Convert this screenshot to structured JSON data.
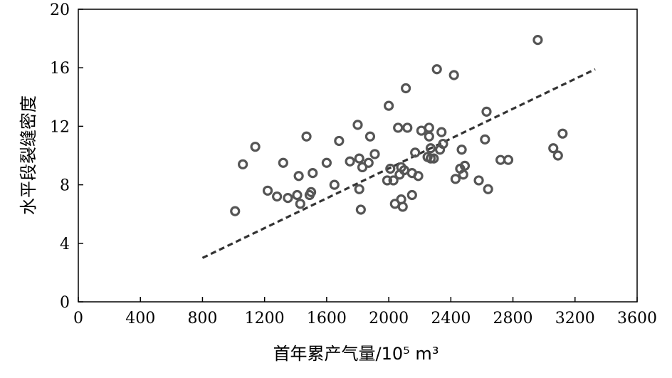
{
  "chart_data": {
    "type": "scatter",
    "xlabel": "首年累产气量/10⁵ m³",
    "ylabel": "水平段裂缝密度",
    "xlim": [
      0,
      3600
    ],
    "ylim": [
      0,
      20
    ],
    "xticks": [
      0,
      400,
      800,
      1200,
      1600,
      2000,
      2400,
      2800,
      3200,
      3600
    ],
    "yticks": [
      0,
      4,
      8,
      12,
      16,
      20
    ],
    "grid": false,
    "points": [
      {
        "x": 1010,
        "y": 6.2
      },
      {
        "x": 1060,
        "y": 9.4
      },
      {
        "x": 1140,
        "y": 10.6
      },
      {
        "x": 1220,
        "y": 7.6
      },
      {
        "x": 1280,
        "y": 7.2
      },
      {
        "x": 1320,
        "y": 9.5
      },
      {
        "x": 1350,
        "y": 7.1
      },
      {
        "x": 1410,
        "y": 7.3
      },
      {
        "x": 1420,
        "y": 8.6
      },
      {
        "x": 1430,
        "y": 6.7
      },
      {
        "x": 1470,
        "y": 11.3
      },
      {
        "x": 1490,
        "y": 7.3
      },
      {
        "x": 1500,
        "y": 7.5
      },
      {
        "x": 1510,
        "y": 8.8
      },
      {
        "x": 1600,
        "y": 9.5
      },
      {
        "x": 1650,
        "y": 8.0
      },
      {
        "x": 1680,
        "y": 11.0
      },
      {
        "x": 1750,
        "y": 9.6
      },
      {
        "x": 1800,
        "y": 12.1
      },
      {
        "x": 1810,
        "y": 9.8
      },
      {
        "x": 1810,
        "y": 7.7
      },
      {
        "x": 1820,
        "y": 6.3
      },
      {
        "x": 1830,
        "y": 9.2
      },
      {
        "x": 1870,
        "y": 9.5
      },
      {
        "x": 1880,
        "y": 11.3
      },
      {
        "x": 1910,
        "y": 10.1
      },
      {
        "x": 1990,
        "y": 8.3
      },
      {
        "x": 2000,
        "y": 13.4
      },
      {
        "x": 2010,
        "y": 9.1
      },
      {
        "x": 2030,
        "y": 8.3
      },
      {
        "x": 2040,
        "y": 6.7
      },
      {
        "x": 2060,
        "y": 11.9
      },
      {
        "x": 2070,
        "y": 8.7
      },
      {
        "x": 2080,
        "y": 9.2
      },
      {
        "x": 2080,
        "y": 7.0
      },
      {
        "x": 2090,
        "y": 6.5
      },
      {
        "x": 2100,
        "y": 9.0
      },
      {
        "x": 2110,
        "y": 14.6
      },
      {
        "x": 2120,
        "y": 11.9
      },
      {
        "x": 2150,
        "y": 8.8
      },
      {
        "x": 2150,
        "y": 7.3
      },
      {
        "x": 2170,
        "y": 10.2
      },
      {
        "x": 2190,
        "y": 8.6
      },
      {
        "x": 2210,
        "y": 11.7
      },
      {
        "x": 2250,
        "y": 9.9
      },
      {
        "x": 2260,
        "y": 11.9
      },
      {
        "x": 2260,
        "y": 11.3
      },
      {
        "x": 2270,
        "y": 10.5
      },
      {
        "x": 2270,
        "y": 9.8
      },
      {
        "x": 2290,
        "y": 9.8
      },
      {
        "x": 2310,
        "y": 15.9
      },
      {
        "x": 2330,
        "y": 10.4
      },
      {
        "x": 2340,
        "y": 11.6
      },
      {
        "x": 2350,
        "y": 10.8
      },
      {
        "x": 2420,
        "y": 15.5
      },
      {
        "x": 2430,
        "y": 8.4
      },
      {
        "x": 2460,
        "y": 9.1
      },
      {
        "x": 2470,
        "y": 10.4
      },
      {
        "x": 2480,
        "y": 8.7
      },
      {
        "x": 2490,
        "y": 9.3
      },
      {
        "x": 2580,
        "y": 8.3
      },
      {
        "x": 2620,
        "y": 11.1
      },
      {
        "x": 2630,
        "y": 13.0
      },
      {
        "x": 2640,
        "y": 7.7
      },
      {
        "x": 2720,
        "y": 9.7
      },
      {
        "x": 2770,
        "y": 9.7
      },
      {
        "x": 2960,
        "y": 17.9
      },
      {
        "x": 3060,
        "y": 10.5
      },
      {
        "x": 3090,
        "y": 10.0
      },
      {
        "x": 3120,
        "y": 11.5
      }
    ],
    "fit_line": {
      "x": [
        800,
        3330
      ],
      "y": [
        3.0,
        15.9
      ]
    }
  }
}
